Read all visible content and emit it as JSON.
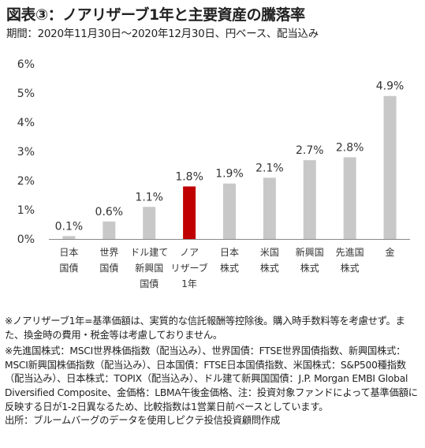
{
  "title": "図表③：ノアリザーブ1年と主要資産の騰落率",
  "subtitle": "期間：2020年11月30日～2020年12月30日、円ベース、配当込み",
  "chart_data": {
    "type": "bar",
    "categories": [
      [
        "日本",
        "国債"
      ],
      [
        "世界",
        "国債"
      ],
      [
        "ドル建て",
        "新興国",
        "国債"
      ],
      [
        "ノア",
        "リザーブ",
        "1年"
      ],
      [
        "日本",
        "株式"
      ],
      [
        "米国",
        "株式"
      ],
      [
        "新興国",
        "株式"
      ],
      [
        "先進国",
        "株式"
      ],
      [
        "金"
      ]
    ],
    "values": [
      0.1,
      0.6,
      1.1,
      1.8,
      1.9,
      2.1,
      2.7,
      2.8,
      4.9
    ],
    "data_labels": [
      "0.1%",
      "0.6%",
      "1.1%",
      "1.8%",
      "1.9%",
      "2.1%",
      "2.7%",
      "2.8%",
      "4.9%"
    ],
    "ylim": [
      0,
      6
    ],
    "yticks": [
      0,
      1,
      2,
      3,
      4,
      5,
      6
    ],
    "ytick_labels": [
      "0%",
      "1%",
      "2%",
      "3%",
      "4%",
      "5%",
      "6%"
    ],
    "grid": false,
    "colors": {
      "default": "#c8c8c8",
      "highlight": "#c00000",
      "axis": "#888888"
    },
    "highlight_index": 3
  },
  "notes": [
    "※ノアリザーブ1年=基準価額は、実質的な信託報酬等控除後。購入時手数料等を考慮せず。また、換金時の費用・税金等は考慮しておりません。",
    "※先進国株式：MSCI世界株価指数（配当込み）、世界国債：FTSE世界国債指数、新興国株式：MSCI新興国株価指数（配当込み）、日本国債：FTSE日本国債指数、米国株式：S&P500種指数（配当込み）、日本株式：TOPIX（配当込み）、ドル建て新興国国債：J.P. Morgan EMBI Global Diversified Composite、金価格：LBMA午後金価格、注：投資対象ファンドによって基準価額に反映する日が1-2日異なるため、比較指数は1営業日前ベースとしています。",
    "出所：ブルームバーグのデータを使用しピクテ投信投資顧問作成"
  ]
}
